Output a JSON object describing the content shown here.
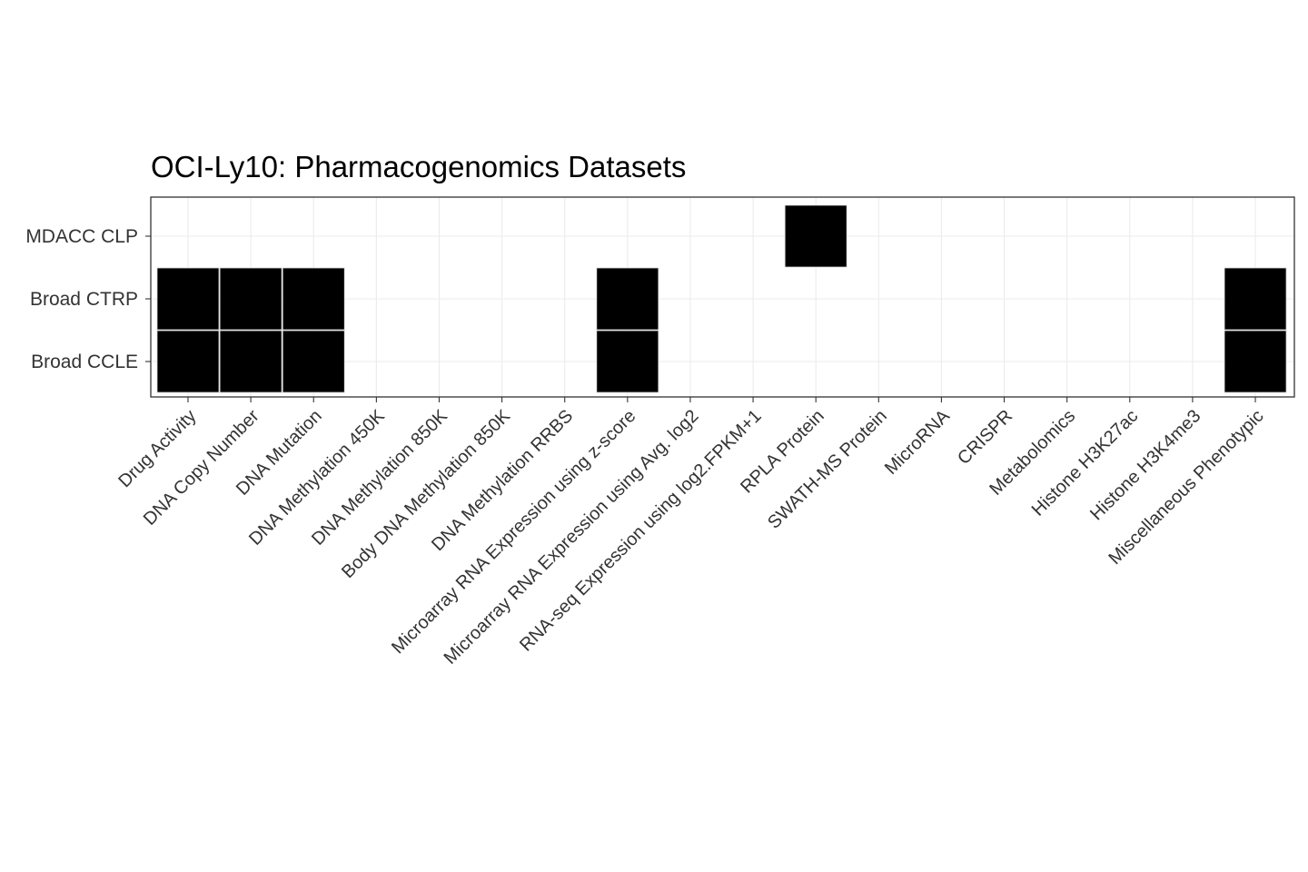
{
  "chart_data": {
    "type": "heatmap",
    "title": "OCI-Ly10: Pharmacogenomics Datasets",
    "xlabel": "",
    "ylabel": "",
    "x_categories": [
      "Drug Activity",
      "DNA Copy Number",
      "DNA Mutation",
      "DNA Methylation 450K",
      "DNA Methylation 850K",
      "Body DNA Methylation 850K",
      "DNA Methylation RRBS",
      "Microarray RNA Expression using z-score",
      "Microarray RNA Expression using Avg. log2",
      "RNA-seq Expression using log2.FPKM+1",
      "RPLA Protein",
      "SWATH-MS Protein",
      "MicroRNA",
      "CRISPR",
      "Metabolomics",
      "Histone H3K27ac",
      "Histone H3K4me3",
      "Miscellaneous Phenotypic"
    ],
    "y_categories": [
      "MDACC CLP",
      "Broad CTRP",
      "Broad CCLE"
    ],
    "cells": [
      {
        "x": "RPLA Protein",
        "y": "MDACC CLP"
      },
      {
        "x": "Drug Activity",
        "y": "Broad CTRP"
      },
      {
        "x": "DNA Copy Number",
        "y": "Broad CTRP"
      },
      {
        "x": "DNA Mutation",
        "y": "Broad CTRP"
      },
      {
        "x": "Microarray RNA Expression using z-score",
        "y": "Broad CTRP"
      },
      {
        "x": "Miscellaneous Phenotypic",
        "y": "Broad CTRP"
      },
      {
        "x": "Drug Activity",
        "y": "Broad CCLE"
      },
      {
        "x": "DNA Copy Number",
        "y": "Broad CCLE"
      },
      {
        "x": "DNA Mutation",
        "y": "Broad CCLE"
      },
      {
        "x": "Microarray RNA Expression using z-score",
        "y": "Broad CCLE"
      },
      {
        "x": "Miscellaneous Phenotypic",
        "y": "Broad CCLE"
      }
    ],
    "fill_color": "#000000",
    "grid": true,
    "legend": "none"
  }
}
